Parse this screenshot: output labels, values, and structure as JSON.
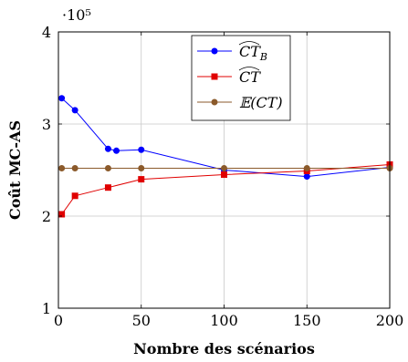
{
  "chart_data": {
    "type": "line",
    "title": "",
    "xlabel": "Nombre des scénarios",
    "ylabel": "Coût MC-AS",
    "y_multiplier_label": "·10⁵",
    "xlim": [
      0,
      200
    ],
    "ylim": [
      1,
      4
    ],
    "x_ticks": [
      0,
      50,
      100,
      150,
      200
    ],
    "y_ticks": [
      1,
      2,
      3,
      4
    ],
    "x_tick_labels": [
      "0",
      "50",
      "100",
      "150",
      "200"
    ],
    "y_tick_labels": [
      "1",
      "2",
      "3",
      "4"
    ],
    "grid": true,
    "legend_position": "top-right",
    "series": [
      {
        "name": "CT̂_B",
        "legend_main": "CT",
        "legend_sub": "B",
        "color": "#0000ff",
        "marker": "circle",
        "x": [
          2,
          10,
          30,
          35,
          50,
          100,
          150,
          200
        ],
        "y": [
          3.28,
          3.15,
          2.73,
          2.71,
          2.72,
          2.5,
          2.43,
          2.53
        ]
      },
      {
        "name": "CT̂",
        "legend_main": "CT",
        "legend_sub": "",
        "color": "#e00000",
        "marker": "square",
        "x": [
          2,
          10,
          30,
          50,
          100,
          150,
          200
        ],
        "y": [
          2.02,
          2.22,
          2.31,
          2.4,
          2.45,
          2.49,
          2.56
        ]
      },
      {
        "name": "𝔼(CT)",
        "legend_main": "𝔼(CT)",
        "legend_sub": "",
        "color": "#8b5a2b",
        "marker": "circle",
        "x": [
          2,
          10,
          30,
          50,
          100,
          150,
          200
        ],
        "y": [
          2.52,
          2.52,
          2.52,
          2.52,
          2.52,
          2.52,
          2.52
        ]
      }
    ]
  }
}
